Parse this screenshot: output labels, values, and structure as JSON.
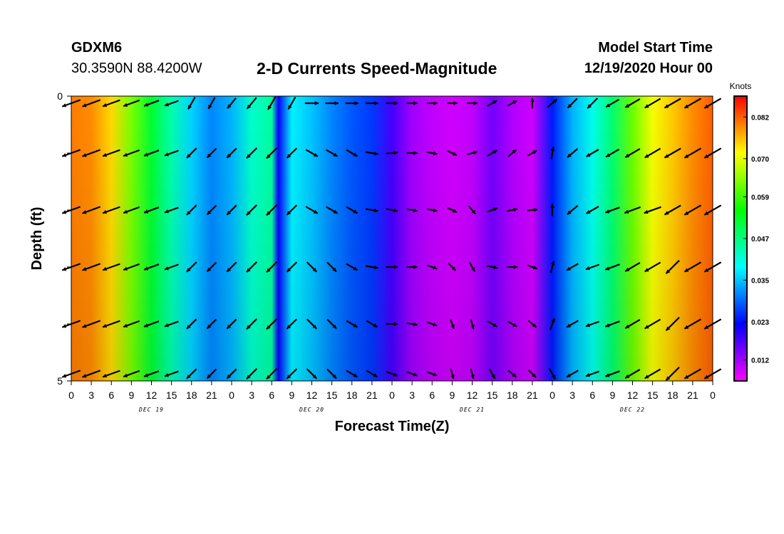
{
  "header": {
    "station": "GDXM6",
    "coords": "30.3590N 88.4200W",
    "title": "2-D Currents Speed-Magnitude",
    "model_start_label": "Model Start Time",
    "model_start_value": "12/19/2020 Hour 00"
  },
  "chart_data": {
    "type": "heatmap",
    "title": "2-D Currents Speed-Magnitude",
    "xlabel": "Forecast Time(Z)",
    "ylabel": "Depth (ft)",
    "x_range_hours": [
      0,
      96
    ],
    "y_range": [
      0,
      5
    ],
    "y_tick_labels": [
      "0",
      "",
      "",
      "",
      "",
      "5"
    ],
    "x_tick_labels": [
      "0",
      "3",
      "6",
      "9",
      "12",
      "15",
      "18",
      "21",
      "0",
      "3",
      "6",
      "9",
      "12",
      "15",
      "18",
      "21",
      "0",
      "3",
      "6",
      "9",
      "12",
      "15",
      "18",
      "21",
      "0",
      "3",
      "6",
      "9",
      "12",
      "15",
      "18",
      "21",
      "0"
    ],
    "day_labels": [
      "DEC 19",
      "DEC 20",
      "DEC 21",
      "DEC 22"
    ],
    "colorbar": {
      "unit": "Knots",
      "min": 0.006,
      "max": 0.088,
      "tick_labels": [
        "0.082",
        "0.070",
        "0.059",
        "0.047",
        "0.035",
        "0.023",
        "0.012"
      ],
      "tick_values": [
        0.082,
        0.07,
        0.059,
        0.047,
        0.035,
        0.023,
        0.012
      ]
    },
    "speed_timeseries": {
      "hours": [
        0,
        3,
        6,
        9,
        12,
        15,
        18,
        21,
        24,
        27,
        30,
        31,
        33,
        36,
        39,
        42,
        45,
        48,
        51,
        54,
        57,
        60,
        63,
        66,
        69,
        72,
        75,
        78,
        81,
        84,
        87,
        90,
        93,
        96
      ],
      "knots": [
        0.08,
        0.079,
        0.074,
        0.063,
        0.052,
        0.044,
        0.036,
        0.031,
        0.034,
        0.042,
        0.045,
        0.022,
        0.038,
        0.035,
        0.031,
        0.028,
        0.026,
        0.018,
        0.012,
        0.01,
        0.009,
        0.01,
        0.015,
        0.011,
        0.009,
        0.024,
        0.034,
        0.04,
        0.048,
        0.062,
        0.071,
        0.075,
        0.079,
        0.082
      ]
    },
    "vector_times_hours": [
      0,
      3,
      6,
      9,
      12,
      15,
      18,
      21,
      24,
      27,
      30,
      33,
      36,
      39,
      42,
      45,
      48,
      51,
      54,
      57,
      60,
      63,
      66,
      69,
      72,
      75,
      78,
      81,
      84,
      87,
      90,
      93,
      96
    ],
    "vector_depths": [
      0,
      1,
      2,
      3,
      4,
      5
    ],
    "vector_direction_deg": [
      [
        -160,
        -160,
        -160,
        -160,
        -160,
        -160,
        -120,
        -120,
        -130,
        -130,
        -120,
        -120,
        0,
        0,
        0,
        0,
        0,
        0,
        0,
        0,
        0,
        30,
        30,
        90,
        40,
        -135,
        -135,
        -150,
        -150,
        -150,
        -150,
        -150,
        -150
      ],
      [
        -160,
        -160,
        -160,
        -160,
        -160,
        -160,
        -135,
        -135,
        -135,
        -135,
        -135,
        -135,
        -30,
        -30,
        -30,
        -10,
        5,
        0,
        -10,
        -25,
        15,
        30,
        40,
        30,
        80,
        -140,
        -150,
        -150,
        -150,
        -150,
        -150,
        -150,
        -150
      ],
      [
        -160,
        -160,
        -160,
        -160,
        -160,
        -160,
        -135,
        -135,
        -135,
        -135,
        -135,
        -135,
        -30,
        -30,
        -30,
        -10,
        -10,
        -10,
        -10,
        -25,
        -50,
        20,
        10,
        5,
        90,
        -140,
        -150,
        -160,
        -160,
        -160,
        -150,
        -150,
        -150
      ],
      [
        -160,
        -160,
        -160,
        -160,
        -160,
        -160,
        -135,
        -135,
        -135,
        -135,
        -135,
        -135,
        -45,
        -45,
        -30,
        -10,
        0,
        0,
        -20,
        -45,
        -60,
        -10,
        0,
        -20,
        75,
        -150,
        -160,
        -160,
        -150,
        -150,
        -135,
        -150,
        -150
      ],
      [
        -160,
        -160,
        -160,
        -160,
        -160,
        -160,
        -135,
        -135,
        -135,
        -135,
        -135,
        -135,
        -45,
        -45,
        -30,
        -30,
        0,
        -10,
        -20,
        -70,
        -75,
        -30,
        -30,
        -40,
        70,
        -150,
        -160,
        -160,
        -150,
        -150,
        -135,
        -150,
        -150
      ],
      [
        -160,
        -160,
        -160,
        -160,
        -160,
        -160,
        -135,
        -135,
        -135,
        -135,
        -135,
        -135,
        -45,
        -45,
        -30,
        -30,
        -20,
        -20,
        -20,
        -75,
        -75,
        -60,
        -40,
        -45,
        -60,
        -150,
        -160,
        -160,
        -150,
        -150,
        -135,
        -150,
        -150
      ]
    ],
    "vector_magnitude": [
      0.08,
      0.079,
      0.074,
      0.063,
      0.052,
      0.044,
      0.036,
      0.031,
      0.034,
      0.042,
      0.045,
      0.038,
      0.035,
      0.031,
      0.028,
      0.026,
      0.018,
      0.012,
      0.01,
      0.009,
      0.01,
      0.015,
      0.011,
      0.009,
      0.024,
      0.034,
      0.04,
      0.048,
      0.062,
      0.071,
      0.075,
      0.079,
      0.082
    ]
  }
}
